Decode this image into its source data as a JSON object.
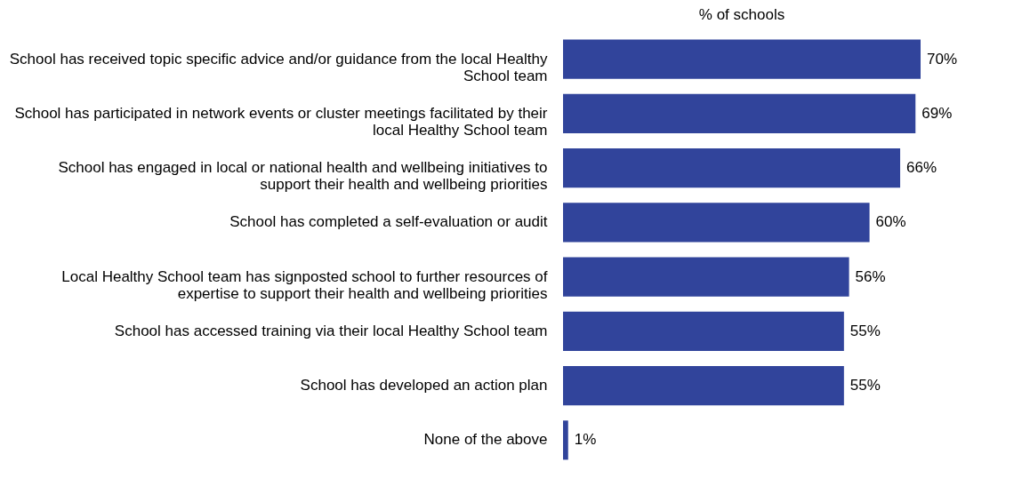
{
  "chart_data": {
    "type": "bar",
    "orientation": "horizontal",
    "title": "% of schools",
    "categories": [
      "School has received topic specific advice and/or guidance from the local Healthy School team",
      "School has participated in network events or cluster meetings facilitated by their local Healthy School team",
      "School has engaged in local or national health and wellbeing initiatives to support their health and wellbeing priorities",
      "School has completed a self-evaluation or audit",
      "Local Healthy School team has signposted school to further resources of expertise to support their health and wellbeing priorities",
      "School has accessed training via their local Healthy School team",
      "School has developed an action plan",
      "None of the above"
    ],
    "values": [
      70,
      69,
      66,
      60,
      56,
      55,
      55,
      1
    ],
    "value_labels": [
      "70%",
      "69%",
      "66%",
      "60%",
      "56%",
      "55%",
      "55%",
      "1%"
    ],
    "color": "#31449b"
  }
}
